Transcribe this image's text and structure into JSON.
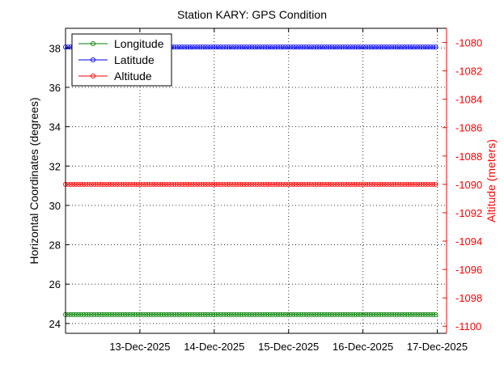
{
  "chart_data": {
    "type": "line",
    "title": "Station KARY: GPS Condition",
    "xlabel": "",
    "ylabel": "Horizontal Coordinates (degrees)",
    "ylabel_right": "Altitude (meters)",
    "x_tick_labels": [
      "13-Dec-2025",
      "14-Dec-2025",
      "15-Dec-2025",
      "16-Dec-2025",
      "17-Dec-2025"
    ],
    "x_range": [
      "12-Dec-2025 00:00",
      "17-Dec-2025 03:00"
    ],
    "ylim": [
      23.5,
      39
    ],
    "yticks": [
      24,
      26,
      28,
      30,
      32,
      34,
      36,
      38
    ],
    "ylim_right": [
      -1100.5,
      -1079
    ],
    "yticks_right": [
      -1080,
      -1082,
      -1084,
      -1086,
      -1088,
      -1090,
      -1092,
      -1094,
      -1096,
      -1098,
      -1100
    ],
    "grid": true,
    "legend_position": "top-left",
    "series": [
      {
        "name": "Longitude",
        "axis": "left",
        "color": "#008000",
        "value": 24.45,
        "x_start": "12-Dec-2025 00:00",
        "x_end": "17-Dec-2025 00:00"
      },
      {
        "name": "Latitude",
        "axis": "left",
        "color": "#0000ff",
        "value": 38.05,
        "x_start": "12-Dec-2025 00:00",
        "x_end": "17-Dec-2025 00:00"
      },
      {
        "name": "Altitude",
        "axis": "right",
        "color": "#ff0000",
        "value": -1090,
        "x_start": "12-Dec-2025 00:00",
        "x_end": "17-Dec-2025 00:00"
      }
    ]
  },
  "colors": {
    "right_axis": "#ff0000",
    "grid": "#000000",
    "marker_dark": "#800000"
  }
}
